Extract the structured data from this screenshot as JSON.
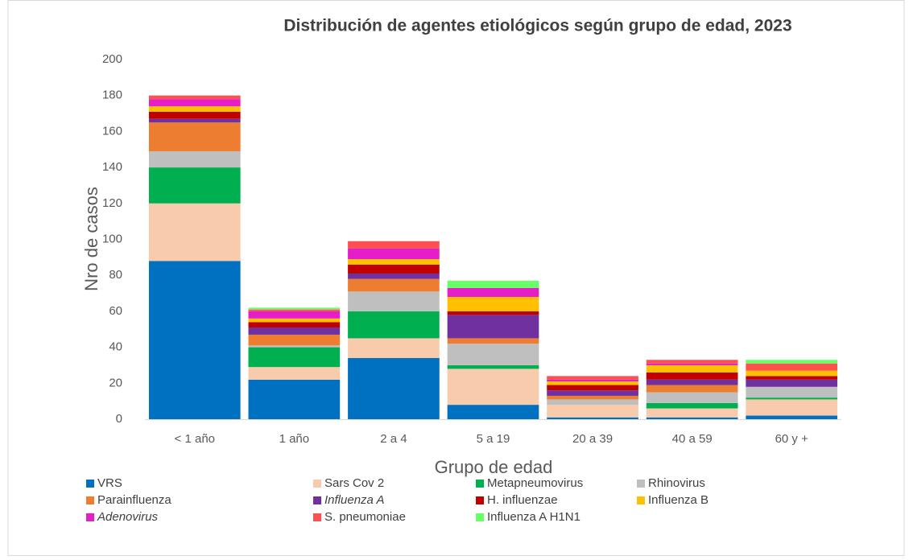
{
  "chart_data": {
    "type": "stacked_bar",
    "title": "Distribución de agentes etiológicos según grupo de edad, 2023",
    "x_label": "Grupo de edad",
    "y_label": "Nro de casos",
    "categories": [
      "< 1 año",
      "1 año",
      "2 a 4",
      "5 a 19",
      "20 a 39",
      "40 a 59",
      "60 y +"
    ],
    "ylim": [
      0,
      200
    ],
    "yticks": [
      0,
      20,
      40,
      60,
      80,
      100,
      120,
      140,
      160,
      180,
      200
    ],
    "grid": false,
    "legend": "bottom",
    "series": [
      {
        "name": "VRS",
        "color": "#0070c0",
        "values": [
          88,
          22,
          34,
          8,
          1,
          1,
          2
        ]
      },
      {
        "name": "Sars Cov 2",
        "color": "#f8cbad",
        "values": [
          32,
          7,
          11,
          20,
          7,
          5,
          9
        ]
      },
      {
        "name": "Metapneumovirus",
        "color": "#00b050",
        "values": [
          20,
          11,
          15,
          2,
          0,
          3,
          1
        ]
      },
      {
        "name": "Rhinovirus",
        "color": "#bfbfbf",
        "values": [
          9,
          1,
          11,
          12,
          3,
          6,
          6
        ]
      },
      {
        "name": "Parainfluenza",
        "color": "#ed7d31",
        "values": [
          16,
          6,
          7,
          3,
          2,
          4,
          0
        ]
      },
      {
        "name": "Influenza A",
        "color": "#7030a0",
        "italic": true,
        "values": [
          2,
          4,
          3,
          13,
          3,
          3,
          4
        ]
      },
      {
        "name": "H. influenzae",
        "color": "#c00000",
        "values": [
          4,
          3,
          5,
          2,
          3,
          4,
          2
        ]
      },
      {
        "name": "Influenza B",
        "color": "#ffc000",
        "values": [
          3,
          2,
          3,
          8,
          2,
          4,
          3
        ]
      },
      {
        "name": "Adenovirus",
        "color": "#e61ec8",
        "italic": true,
        "values": [
          4,
          4,
          6,
          5,
          1,
          1,
          0
        ]
      },
      {
        "name": "S. pneumoniae",
        "color": "#ff5050",
        "values": [
          2,
          1,
          4,
          0,
          2,
          2,
          4
        ]
      },
      {
        "name": "Influenza A H1N1",
        "color": "#66ff66",
        "values": [
          0,
          1,
          0,
          4,
          0,
          0,
          2
        ]
      }
    ]
  }
}
